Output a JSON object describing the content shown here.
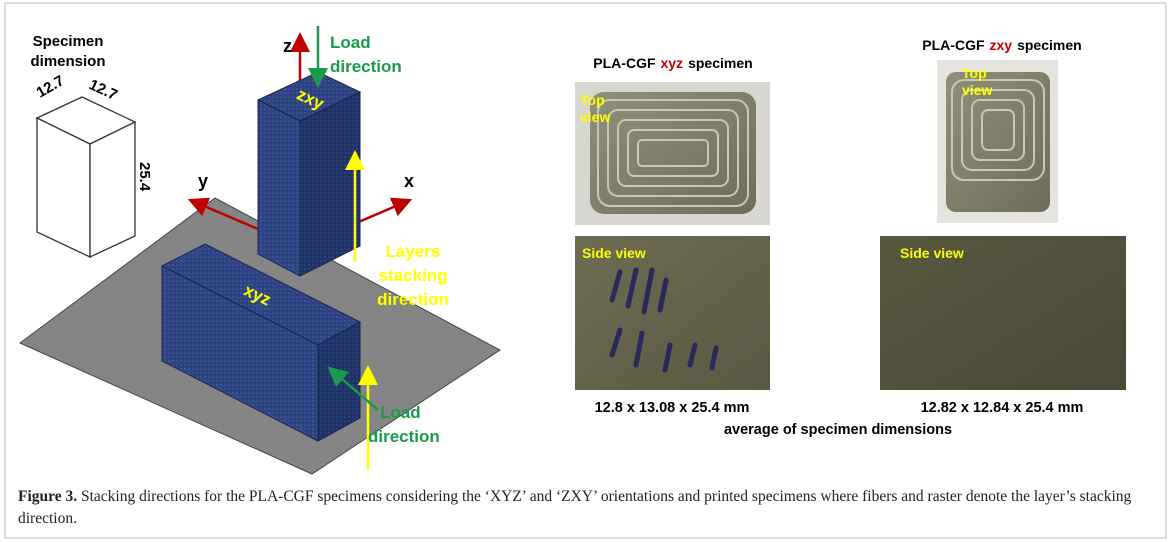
{
  "diagram": {
    "title_lines": [
      "Specimen",
      "dimension"
    ],
    "dims": [
      "12.7",
      "12.7",
      "25.4"
    ],
    "axes": {
      "z": "z",
      "y": "y",
      "x": "x"
    },
    "top_load": [
      "Load",
      "direction"
    ],
    "tall_box": "zxy",
    "flat_box": "xyz",
    "stacking": [
      "Layers",
      "stacking",
      "direction"
    ],
    "bottom_load": [
      "Load",
      "direction"
    ]
  },
  "photos": [
    {
      "title": {
        "prefix": "PLA-CGF",
        "orientation": "xyz",
        "suffix": "specimen"
      },
      "top_label": [
        "Top",
        "view"
      ],
      "side_label": "Side view",
      "dimensions": "12.8 x 13.08 x 25.4 mm"
    },
    {
      "title": {
        "prefix": "PLA-CGF",
        "orientation": "zxy",
        "suffix": "specimen"
      },
      "top_label": [
        "Top",
        "view"
      ],
      "side_label": "Side view",
      "dimensions": "12.82 x 12.84 x 25.4 mm"
    }
  ],
  "photos_note": "average of specimen dimensions",
  "caption": {
    "label": "Figure 3.",
    "text": " Stacking directions for the PLA-CGF specimens considering the ‘XYZ’ and ‘ZXY’ orientations and printed specimens where fibers and raster denote the layer’s stacking direction."
  }
}
